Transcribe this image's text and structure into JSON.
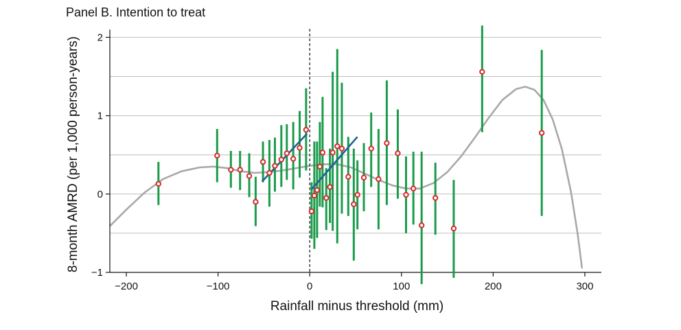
{
  "chart_data": {
    "type": "scatter",
    "title": "Panel B. Intention to treat",
    "xlabel": "Rainfall minus threshold (mm)",
    "ylabel": "8-month AMRD (per 1,000 person-years)",
    "xlim": [
      -218,
      318
    ],
    "ylim": [
      -1.0,
      2.1
    ],
    "x_ticks": [
      -200,
      -100,
      0,
      100,
      200,
      300
    ],
    "x_tick_labels": [
      "−200",
      "−100",
      "0",
      "100",
      "200",
      "300"
    ],
    "y_ticks": [
      -1,
      0,
      1,
      2
    ],
    "y_tick_labels": [
      "−1",
      "0",
      "1",
      "2"
    ],
    "gridlines_y": [
      -0.5,
      0,
      0.5,
      1,
      1.5,
      2
    ],
    "threshold_x": 0,
    "colors": {
      "errorbar": "#1a9b4b",
      "point_edge": "#d42a2a",
      "fit_line": "#1f5f94",
      "smooth": "#a8a8a8",
      "grid": "#bdbdbd"
    },
    "points": [
      {
        "x": -165,
        "y": 0.13,
        "lo": -0.14,
        "hi": 0.41
      },
      {
        "x": -101,
        "y": 0.49,
        "lo": 0.15,
        "hi": 0.83
      },
      {
        "x": -86,
        "y": 0.31,
        "lo": 0.08,
        "hi": 0.55
      },
      {
        "x": -76,
        "y": 0.31,
        "lo": 0.05,
        "hi": 0.55
      },
      {
        "x": -66,
        "y": 0.23,
        "lo": -0.04,
        "hi": 0.52
      },
      {
        "x": -59,
        "y": -0.1,
        "lo": -0.41,
        "hi": 0.22
      },
      {
        "x": -51,
        "y": 0.41,
        "lo": 0.15,
        "hi": 0.67
      },
      {
        "x": -44,
        "y": 0.27,
        "lo": -0.16,
        "hi": 0.69
      },
      {
        "x": -38,
        "y": 0.36,
        "lo": 0.03,
        "hi": 0.72
      },
      {
        "x": -31,
        "y": 0.44,
        "lo": 0.09,
        "hi": 0.88
      },
      {
        "x": -25,
        "y": 0.52,
        "lo": 0.18,
        "hi": 0.89
      },
      {
        "x": -18,
        "y": 0.45,
        "lo": 0.06,
        "hi": 0.92
      },
      {
        "x": -11,
        "y": 0.59,
        "lo": 0.21,
        "hi": 1.06
      },
      {
        "x": -4,
        "y": 0.82,
        "lo": 0.3,
        "hi": 1.35
      },
      {
        "x": 2,
        "y": -0.22,
        "lo": -0.57,
        "hi": 0.15
      },
      {
        "x": 5,
        "y": -0.02,
        "lo": -0.7,
        "hi": 0.67
      },
      {
        "x": 8,
        "y": 0.05,
        "lo": -0.56,
        "hi": 0.67
      },
      {
        "x": 11,
        "y": 0.35,
        "lo": -0.16,
        "hi": 0.92
      },
      {
        "x": 14,
        "y": 0.53,
        "lo": -0.17,
        "hi": 1.24
      },
      {
        "x": 18,
        "y": -0.05,
        "lo": -0.46,
        "hi": 0.33
      },
      {
        "x": 22,
        "y": 0.09,
        "lo": -0.37,
        "hi": 0.58
      },
      {
        "x": 25,
        "y": 0.53,
        "lo": -0.47,
        "hi": 1.56
      },
      {
        "x": 30,
        "y": 0.61,
        "lo": -0.63,
        "hi": 1.85
      },
      {
        "x": 35,
        "y": 0.58,
        "lo": -0.25,
        "hi": 1.42
      },
      {
        "x": 42,
        "y": 0.22,
        "lo": -0.28,
        "hi": 0.73
      },
      {
        "x": 48,
        "y": -0.13,
        "lo": -0.85,
        "hi": 0.58
      },
      {
        "x": 52,
        "y": -0.01,
        "lo": -0.45,
        "hi": 0.43
      },
      {
        "x": 59,
        "y": 0.21,
        "lo": -0.22,
        "hi": 0.65
      },
      {
        "x": 67,
        "y": 0.58,
        "lo": 0.09,
        "hi": 1.04
      },
      {
        "x": 75,
        "y": 0.19,
        "lo": -0.45,
        "hi": 0.83
      },
      {
        "x": 84,
        "y": 0.65,
        "lo": -0.14,
        "hi": 1.45
      },
      {
        "x": 96,
        "y": 0.52,
        "lo": -0.06,
        "hi": 1.08
      },
      {
        "x": 105,
        "y": -0.01,
        "lo": -0.5,
        "hi": 0.48
      },
      {
        "x": 113,
        "y": 0.07,
        "lo": -0.39,
        "hi": 0.54
      },
      {
        "x": 122,
        "y": -0.4,
        "lo": -1.15,
        "hi": 0.54
      },
      {
        "x": 137,
        "y": -0.05,
        "lo": -0.52,
        "hi": 0.4
      },
      {
        "x": 157,
        "y": -0.44,
        "lo": -1.07,
        "hi": 0.18
      },
      {
        "x": 188,
        "y": 1.56,
        "lo": 0.79,
        "hi": 2.15
      },
      {
        "x": 253,
        "y": 0.78,
        "lo": -0.28,
        "hi": 1.84
      }
    ],
    "fit_left": [
      {
        "x": -52,
        "y": 0.16
      },
      {
        "x": -3,
        "y": 0.77
      }
    ],
    "fit_right": [
      {
        "x": 2,
        "y": 0.06
      },
      {
        "x": 52,
        "y": 0.73
      }
    ],
    "smooth_curve": [
      {
        "x": -218,
        "y": -0.41
      },
      {
        "x": -200,
        "y": -0.2
      },
      {
        "x": -180,
        "y": 0.02
      },
      {
        "x": -160,
        "y": 0.19
      },
      {
        "x": -140,
        "y": 0.29
      },
      {
        "x": -120,
        "y": 0.34
      },
      {
        "x": -105,
        "y": 0.35
      },
      {
        "x": -90,
        "y": 0.33
      },
      {
        "x": -75,
        "y": 0.29
      },
      {
        "x": -60,
        "y": 0.27
      },
      {
        "x": -45,
        "y": 0.28
      },
      {
        "x": -30,
        "y": 0.3
      },
      {
        "x": -15,
        "y": 0.33
      },
      {
        "x": 0,
        "y": 0.36
      },
      {
        "x": 15,
        "y": 0.38
      },
      {
        "x": 30,
        "y": 0.38
      },
      {
        "x": 45,
        "y": 0.34
      },
      {
        "x": 60,
        "y": 0.26
      },
      {
        "x": 75,
        "y": 0.18
      },
      {
        "x": 90,
        "y": 0.11
      },
      {
        "x": 105,
        "y": 0.07
      },
      {
        "x": 120,
        "y": 0.07
      },
      {
        "x": 135,
        "y": 0.14
      },
      {
        "x": 150,
        "y": 0.28
      },
      {
        "x": 165,
        "y": 0.48
      },
      {
        "x": 180,
        "y": 0.72
      },
      {
        "x": 195,
        "y": 0.97
      },
      {
        "x": 210,
        "y": 1.2
      },
      {
        "x": 225,
        "y": 1.34
      },
      {
        "x": 235,
        "y": 1.37
      },
      {
        "x": 245,
        "y": 1.33
      },
      {
        "x": 255,
        "y": 1.2
      },
      {
        "x": 265,
        "y": 0.95
      },
      {
        "x": 275,
        "y": 0.57
      },
      {
        "x": 285,
        "y": 0.02
      },
      {
        "x": 292,
        "y": -0.5
      },
      {
        "x": 297,
        "y": -0.95
      }
    ]
  }
}
